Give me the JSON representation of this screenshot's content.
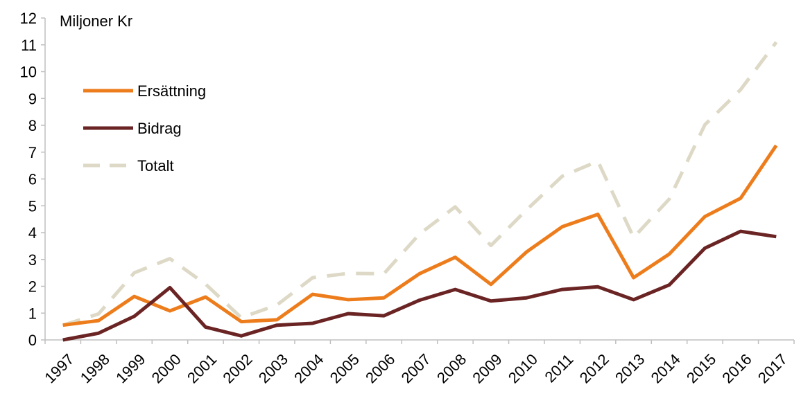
{
  "chart_data": {
    "type": "line",
    "title": "",
    "xlabel": "",
    "ylabel": "Miljoner Kr",
    "ylim": [
      0,
      12
    ],
    "yticks": [
      0,
      1,
      2,
      3,
      4,
      5,
      6,
      7,
      8,
      9,
      10,
      11,
      12
    ],
    "grid": false,
    "legend_position": "top-left",
    "x": [
      "1997",
      "1998",
      "1999",
      "2000",
      "2001",
      "2002",
      "2003",
      "2004",
      "2005",
      "2006",
      "2007",
      "2008",
      "2009",
      "2010",
      "2011",
      "2012",
      "2013",
      "2014",
      "2015",
      "2016",
      "2017"
    ],
    "series": [
      {
        "name": "Ersättning",
        "color": "#ed7d1c",
        "style": "solid",
        "values": [
          0.55,
          0.72,
          1.62,
          1.08,
          1.6,
          0.68,
          0.75,
          1.7,
          1.5,
          1.57,
          2.47,
          3.08,
          2.07,
          3.28,
          4.22,
          4.68,
          2.32,
          3.2,
          4.6,
          5.28,
          7.25
        ]
      },
      {
        "name": "Bidrag",
        "color": "#6b2424",
        "style": "solid",
        "values": [
          0.0,
          0.25,
          0.88,
          1.95,
          0.48,
          0.15,
          0.55,
          0.62,
          0.98,
          0.9,
          1.48,
          1.88,
          1.45,
          1.57,
          1.88,
          1.98,
          1.5,
          2.05,
          3.42,
          4.05,
          3.85
        ]
      },
      {
        "name": "Totalt",
        "color": "#ddd9c6",
        "style": "dashed",
        "values": [
          0.55,
          0.97,
          2.5,
          3.03,
          2.08,
          0.83,
          1.3,
          2.32,
          2.48,
          2.47,
          3.95,
          4.96,
          3.52,
          4.85,
          6.1,
          6.66,
          3.82,
          5.25,
          8.02,
          9.33,
          11.1
        ]
      }
    ]
  }
}
